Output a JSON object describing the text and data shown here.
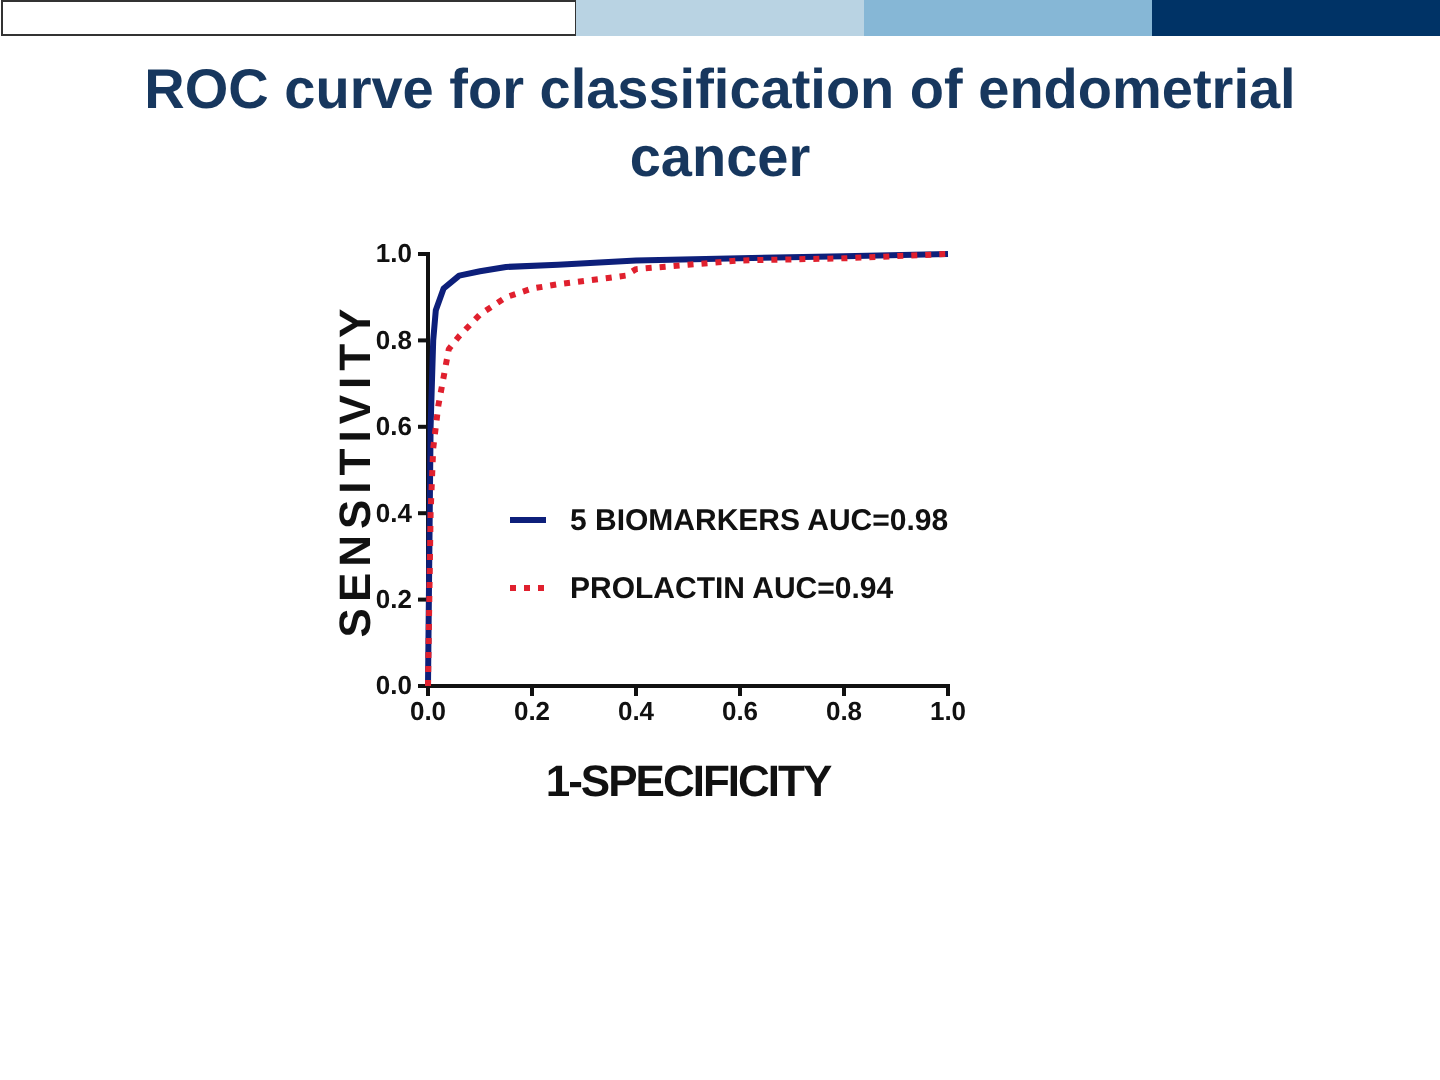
{
  "chart_data": {
    "type": "line",
    "title": "ROC curve for classification of endometrial cancer",
    "xlabel": "1-SPECIFICITY",
    "ylabel": "SENSITIVITY",
    "xlim": [
      0,
      1
    ],
    "ylim": [
      0,
      1
    ],
    "xticks": [
      {
        "value": 0,
        "label": "0.0"
      },
      {
        "value": 0.2,
        "label": "0.2"
      },
      {
        "value": 0.4,
        "label": "0.4"
      },
      {
        "value": 0.6,
        "label": "0.6"
      },
      {
        "value": 0.8,
        "label": "0.8"
      },
      {
        "value": 1,
        "label": "1.0"
      }
    ],
    "yticks": [
      {
        "value": 0,
        "label": "0.0"
      },
      {
        "value": 0.2,
        "label": "0.2"
      },
      {
        "value": 0.4,
        "label": "0.4"
      },
      {
        "value": 0.6,
        "label": "0.6"
      },
      {
        "value": 0.8,
        "label": "0.8"
      },
      {
        "value": 1,
        "label": "1.0"
      }
    ],
    "grid": false,
    "legend": "right",
    "series": [
      {
        "name": "5 BIOMARKERS AUC=0.98",
        "color": "#0d1f7a",
        "line_style": "solid",
        "x": [
          0,
          0.005,
          0.01,
          0.015,
          0.03,
          0.06,
          0.1,
          0.15,
          0.25,
          0.4,
          0.6,
          0.8,
          1
        ],
        "values": [
          0,
          0.6,
          0.8,
          0.87,
          0.92,
          0.95,
          0.96,
          0.97,
          0.975,
          0.985,
          0.99,
          0.995,
          1
        ]
      },
      {
        "name": "PROLACTIN AUC=0.94",
        "color": "#e0202e",
        "line_style": "dotted",
        "x": [
          0,
          0.005,
          0.01,
          0.02,
          0.04,
          0.06,
          0.1,
          0.15,
          0.2,
          0.25,
          0.35,
          0.38,
          0.4,
          0.5,
          0.6,
          0.8,
          0.9,
          1
        ],
        "values": [
          0,
          0.4,
          0.55,
          0.65,
          0.78,
          0.81,
          0.86,
          0.9,
          0.92,
          0.93,
          0.945,
          0.95,
          0.965,
          0.975,
          0.985,
          0.99,
          0.995,
          1
        ]
      }
    ]
  }
}
